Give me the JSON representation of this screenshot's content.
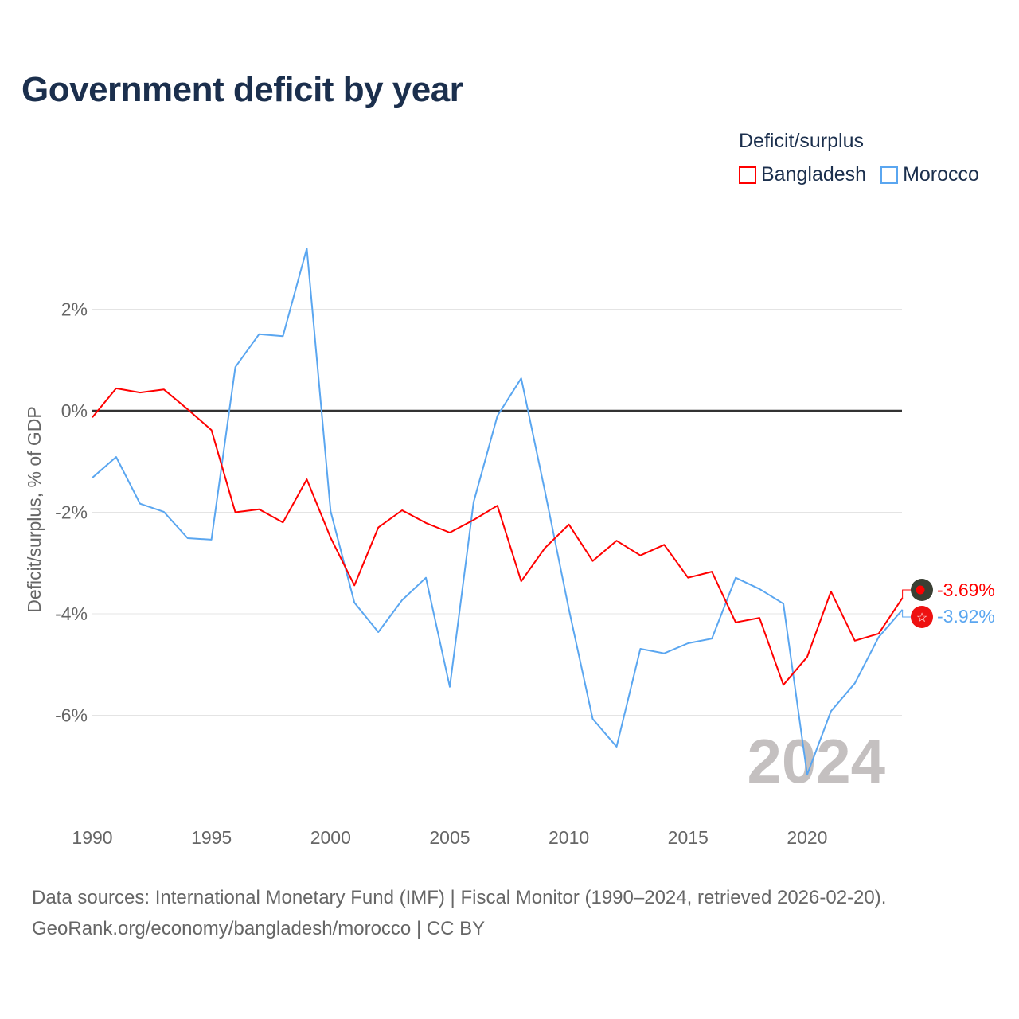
{
  "title": "Government deficit by year",
  "legend": {
    "title": "Deficit/surplus",
    "items": [
      {
        "name": "Bangladesh",
        "color": "#ff0000"
      },
      {
        "name": "Morocco",
        "color": "#5aa6f0"
      }
    ]
  },
  "watermark_year": "2024",
  "end_labels": {
    "bangladesh": "-3.69%",
    "morocco": "-3.92%"
  },
  "source": {
    "line1": "Data sources: International Monetary Fund (IMF) | Fiscal Monitor (1990–2024, retrieved 2026-02-20).",
    "line2": "GeoRank.org/economy/bangladesh/morocco | CC BY"
  },
  "chart_data": {
    "type": "line",
    "title": "Government deficit by year",
    "xlabel": "",
    "ylabel": "Deficit/surplus, % of GDP",
    "xlim": [
      1990,
      2024
    ],
    "ylim": [
      -8,
      3.5
    ],
    "x_ticks": [
      "1990",
      "1995",
      "2000",
      "2005",
      "2010",
      "2015",
      "2020"
    ],
    "y_ticks": [
      {
        "value": 2,
        "label": "2%"
      },
      {
        "value": 0,
        "label": "0%"
      },
      {
        "value": -2,
        "label": "-2%"
      },
      {
        "value": -4,
        "label": "-4%"
      },
      {
        "value": -6,
        "label": "-6%"
      }
    ],
    "x": [
      1990,
      1991,
      1992,
      1993,
      1994,
      1995,
      1996,
      1997,
      1998,
      1999,
      2000,
      2001,
      2002,
      2003,
      2004,
      2005,
      2006,
      2007,
      2008,
      2009,
      2010,
      2011,
      2012,
      2013,
      2014,
      2015,
      2016,
      2017,
      2018,
      2019,
      2020,
      2021,
      2022,
      2023,
      2024
    ],
    "series": [
      {
        "name": "Bangladesh",
        "color": "#ff0000",
        "values": [
          -0.13,
          0.44,
          0.36,
          0.42,
          0.03,
          -0.38,
          -2.0,
          -1.94,
          -2.2,
          -1.35,
          -2.5,
          -3.44,
          -2.3,
          -1.96,
          -2.21,
          -2.4,
          -2.15,
          -1.87,
          -3.36,
          -2.7,
          -2.24,
          -2.96,
          -2.56,
          -2.85,
          -2.64,
          -3.29,
          -3.17,
          -4.17,
          -4.08,
          -5.4,
          -4.85,
          -3.56,
          -4.53,
          -4.39,
          -3.69
        ]
      },
      {
        "name": "Morocco",
        "color": "#5aa6f0",
        "values": [
          -1.32,
          -0.91,
          -1.83,
          -1.99,
          -2.51,
          -2.54,
          0.86,
          1.51,
          1.47,
          3.2,
          -1.98,
          -3.78,
          -4.36,
          -3.73,
          -3.29,
          -5.44,
          -1.8,
          -0.1,
          0.64,
          -1.6,
          -3.91,
          -6.07,
          -6.62,
          -4.69,
          -4.78,
          -4.58,
          -4.49,
          -3.29,
          -3.51,
          -3.8,
          -7.17,
          -5.92,
          -5.37,
          -4.46,
          -3.92
        ]
      }
    ],
    "grid": true,
    "legend_position": "top-right"
  }
}
